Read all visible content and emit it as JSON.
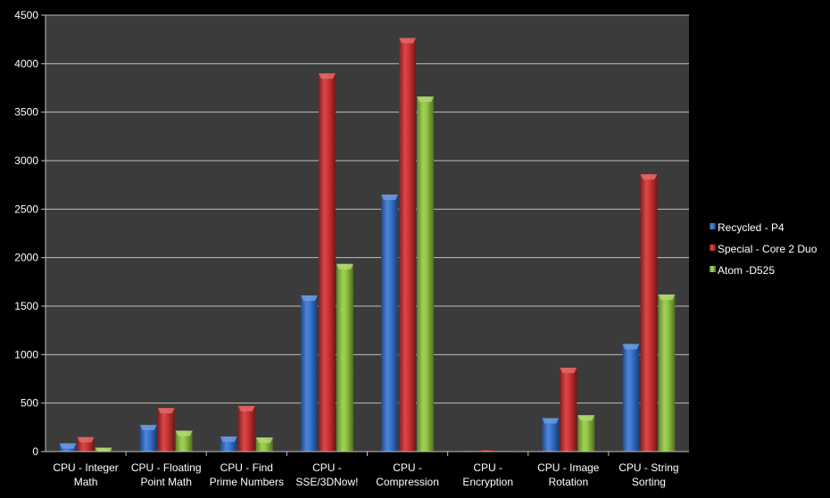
{
  "chart_data": {
    "type": "bar",
    "title": "",
    "xlabel": "",
    "ylabel": "",
    "ylim": [
      0,
      4500
    ],
    "yticks": [
      0,
      500,
      1000,
      1500,
      2000,
      2500,
      3000,
      3500,
      4000,
      4500
    ],
    "grid": true,
    "legend_position": "right",
    "categories": [
      [
        "CPU - Integer",
        "Math"
      ],
      [
        "CPU - Floating",
        "Point Math"
      ],
      [
        "CPU - Find",
        "Prime Numbers"
      ],
      [
        "CPU -",
        "SSE/3DNow!"
      ],
      [
        "CPU -",
        "Compression"
      ],
      [
        "CPU -",
        "Encryption"
      ],
      [
        "CPU - Image",
        "Rotation"
      ],
      [
        "CPU - String",
        "Sorting"
      ]
    ],
    "series": [
      {
        "name": "Recycled - P4",
        "color": "#2e6fd0",
        "values": [
          85,
          275,
          155,
          1610,
          2650,
          6,
          345,
          1110
        ]
      },
      {
        "name": "Special - Core 2 Duo",
        "color": "#d02a2a",
        "values": [
          150,
          450,
          470,
          3900,
          4265,
          15,
          865,
          2860
        ]
      },
      {
        "name": "Atom -D525",
        "color": "#8fc63a",
        "values": [
          40,
          215,
          145,
          1935,
          3660,
          5,
          375,
          1620
        ]
      }
    ]
  },
  "colors": {
    "background": "#000000",
    "plot_area": "#3b3b3b",
    "gridline": "#bfbfbf",
    "text": "#ffffff"
  }
}
